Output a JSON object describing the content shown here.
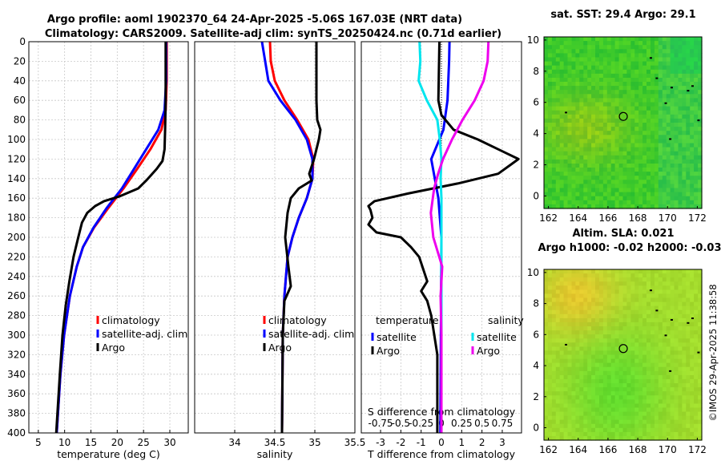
{
  "title_line1": "Argo profile: aoml 1902370_64 24-Apr-2025 -5.06S 167.03E (NRT data)",
  "title_line2": "Climatology: CARS2009. Satellite-adj clim: synTS_20250424.nc (0.71d earlier)",
  "timestamp": "©IMOS 29-Apr-2025 11:38:58",
  "colors": {
    "climatology": "#ff0000",
    "satellite": "#0000ff",
    "argo": "#000000",
    "t_sat": "#0000ff",
    "s_sat": "#00e5ee",
    "s_argo": "#ee00ee"
  },
  "chart_data": [
    {
      "type": "line",
      "name": "temperature",
      "xlabel": "temperature (deg C)",
      "ylabel": "",
      "xlim": [
        3.2,
        33.5
      ],
      "ylim": [
        400,
        0
      ],
      "xticks": [
        5,
        10,
        15,
        20,
        25,
        30
      ],
      "yticks": [
        0,
        20,
        40,
        60,
        80,
        100,
        120,
        140,
        160,
        180,
        200,
        220,
        240,
        260,
        280,
        300,
        320,
        340,
        360,
        380,
        400
      ],
      "legend": [
        "climatology",
        "satellite-adj. clim",
        "Argo"
      ],
      "series": [
        {
          "name": "climatology",
          "depth": [
            0,
            40,
            70,
            90,
            110,
            130,
            150,
            170,
            190,
            210,
            230,
            260,
            300,
            340,
            400
          ],
          "values": [
            29.4,
            29.4,
            29.2,
            28.4,
            26.3,
            23.8,
            21.2,
            18.3,
            15.6,
            13.5,
            12.3,
            11.0,
            9.9,
            9.2,
            8.5
          ]
        },
        {
          "name": "satellite-adj. clim",
          "depth": [
            0,
            40,
            70,
            90,
            110,
            130,
            150,
            170,
            190,
            210,
            230,
            260,
            300,
            340,
            400
          ],
          "values": [
            29.3,
            29.3,
            29.0,
            27.8,
            25.5,
            23.2,
            20.9,
            18.0,
            15.5,
            13.5,
            12.3,
            11.0,
            9.9,
            9.2,
            8.5
          ]
        },
        {
          "name": "Argo",
          "depth": [
            0,
            60,
            90,
            110,
            122,
            130,
            142,
            150,
            158,
            163,
            168,
            175,
            185,
            200,
            220,
            245,
            270,
            300,
            340,
            400
          ],
          "values": [
            29.2,
            29.2,
            29.1,
            29.0,
            28.6,
            27.5,
            25.5,
            24.0,
            20.5,
            17.5,
            15.8,
            14.3,
            13.3,
            12.6,
            11.7,
            10.9,
            10.2,
            9.6,
            9.1,
            8.4
          ]
        }
      ]
    },
    {
      "type": "line",
      "name": "salinity",
      "xlabel": "salinity",
      "ylabel": "",
      "xlim": [
        33.5,
        35.5
      ],
      "ylim": [
        400,
        0
      ],
      "xticks": [
        34,
        34.5,
        35,
        35.5
      ],
      "legend": [
        "climatology",
        "satellite-adj. clim",
        "Argo"
      ],
      "series": [
        {
          "name": "climatology",
          "depth": [
            0,
            20,
            40,
            60,
            80,
            100,
            120,
            140,
            160,
            180,
            200,
            220,
            260,
            300,
            400
          ],
          "values": [
            34.44,
            34.45,
            34.5,
            34.62,
            34.78,
            34.92,
            34.98,
            34.97,
            34.9,
            34.8,
            34.72,
            34.66,
            34.62,
            34.6,
            34.59
          ]
        },
        {
          "name": "satellite-adj. clim",
          "depth": [
            0,
            10,
            20,
            40,
            60,
            80,
            100,
            120,
            140,
            160,
            180,
            200,
            220,
            260,
            300,
            400
          ],
          "values": [
            34.34,
            34.36,
            34.38,
            34.42,
            34.57,
            34.76,
            34.9,
            34.97,
            34.97,
            34.9,
            34.8,
            34.72,
            34.66,
            34.62,
            34.6,
            34.59
          ]
        },
        {
          "name": "Argo",
          "depth": [
            0,
            30,
            60,
            80,
            90,
            100,
            120,
            135,
            142,
            150,
            160,
            175,
            200,
            230,
            250,
            265,
            300,
            400
          ],
          "values": [
            35.02,
            35.02,
            35.02,
            35.03,
            35.07,
            35.05,
            34.99,
            34.93,
            34.96,
            34.8,
            34.7,
            34.66,
            34.63,
            34.67,
            34.7,
            34.62,
            34.6,
            34.59
          ]
        }
      ]
    },
    {
      "type": "line",
      "name": "difference",
      "xlabel": "T difference from climatology",
      "xlabel_top": "S difference from climatology",
      "xlim": [
        -3.95,
        3.95
      ],
      "ylim": [
        400,
        0
      ],
      "xticks": [
        -3,
        -2,
        -1,
        0,
        1,
        2,
        3
      ],
      "xticks_top_labels": [
        "-0.75",
        "-0.5",
        "-0.25",
        "0",
        "0.25",
        "0.5",
        "0.75"
      ],
      "legend_titles": [
        "temperature",
        "salinity"
      ],
      "legend_left": [
        "satellite",
        "Argo"
      ],
      "legend_right": [
        "satellite",
        "Argo"
      ],
      "series": [
        {
          "name": "T satellite",
          "depth": [
            0,
            20,
            60,
            90,
            120,
            160,
            200,
            400
          ],
          "values": [
            0.4,
            0.38,
            0.3,
            0.1,
            -0.5,
            -0.15,
            0.0,
            -0.05
          ]
        },
        {
          "name": "T Argo",
          "depth": [
            0,
            60,
            75,
            90,
            100,
            110,
            120,
            135,
            145,
            155,
            163,
            168,
            172,
            180,
            187,
            195,
            200,
            210,
            220,
            245,
            255,
            265,
            280,
            320,
            400
          ],
          "values": [
            -0.1,
            -0.15,
            0.0,
            0.6,
            1.8,
            2.8,
            3.8,
            2.8,
            0.8,
            -1.6,
            -3.3,
            -3.6,
            -3.5,
            -3.4,
            -3.6,
            -3.2,
            -2.0,
            -1.5,
            -1.1,
            -0.7,
            -1.0,
            -0.7,
            -0.5,
            -0.2,
            -0.2
          ]
        },
        {
          "name": "S satellite",
          "depth": [
            0,
            20,
            40,
            60,
            80,
            100,
            120,
            140,
            160,
            200,
            260,
            300,
            400
          ],
          "values": [
            -0.27,
            -0.26,
            -0.28,
            -0.18,
            -0.05,
            -0.02,
            0.0,
            -0.01,
            0.0,
            0.0,
            0.0,
            0.0,
            0.0
          ]
        },
        {
          "name": "S Argo",
          "depth": [
            0,
            20,
            40,
            60,
            80,
            100,
            120,
            135,
            150,
            175,
            200,
            230,
            260,
            300,
            400
          ],
          "values": [
            0.58,
            0.57,
            0.52,
            0.41,
            0.26,
            0.13,
            0.02,
            -0.04,
            -0.09,
            -0.13,
            -0.1,
            0.01,
            -0.01,
            0.0,
            0.0
          ]
        }
      ]
    },
    {
      "type": "heatmap",
      "name": "sst_map",
      "title": "sat. SST: 29.4 Argo: 29.1",
      "xlim": [
        161.7,
        172.3
      ],
      "ylim": [
        -0.8,
        10.2
      ],
      "xticks": [
        162,
        164,
        166,
        168,
        170,
        172
      ],
      "yticks": [
        0,
        2,
        4,
        6,
        8,
        10
      ],
      "marker": {
        "x": 167.03,
        "y": 5.1
      }
    },
    {
      "type": "heatmap",
      "name": "sla_map",
      "title_line1": "Altim. SLA: 0.021",
      "title_line2": "Argo h1000: -0.02 h2000: -0.03",
      "xlim": [
        161.7,
        172.3
      ],
      "ylim": [
        -0.8,
        10.2
      ],
      "xticks": [
        162,
        164,
        166,
        168,
        170,
        172
      ],
      "yticks": [
        0,
        2,
        4,
        6,
        8,
        10
      ],
      "marker": {
        "x": 167.03,
        "y": 5.1
      }
    }
  ]
}
